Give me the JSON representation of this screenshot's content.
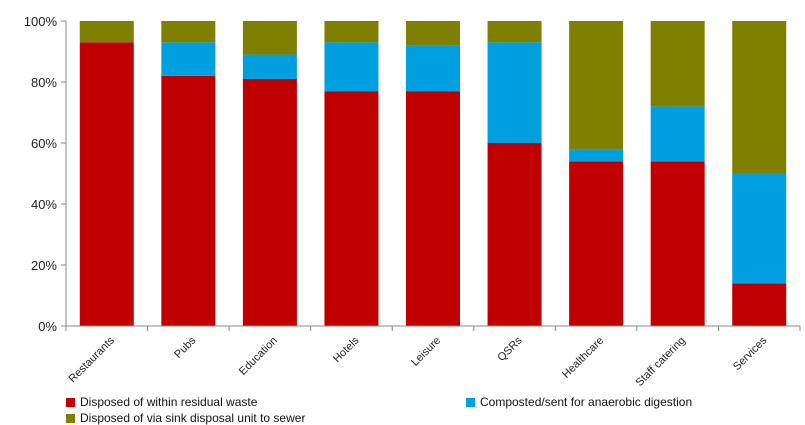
{
  "chart_data": {
    "type": "bar",
    "stacked": true,
    "percent": true,
    "title": "",
    "xlabel": "",
    "ylabel": "",
    "ylim": [
      0,
      100
    ],
    "yticks": [
      "0%",
      "20%",
      "40%",
      "60%",
      "80%",
      "100%"
    ],
    "grid": false,
    "legend_position": "bottom",
    "categories": [
      "Restaurants",
      "Pubs",
      "Education",
      "Hotels",
      "Leisure",
      "QSRs",
      "Healthcare",
      "Staff catering",
      "Services"
    ],
    "series": [
      {
        "name": "Disposed of within residual waste",
        "color": "#c00000",
        "values": [
          93,
          82,
          81,
          77,
          77,
          60,
          54,
          54,
          14
        ]
      },
      {
        "name": "Composted/sent for anaerobic digestion",
        "color": "#00a0e0",
        "values": [
          0,
          11,
          8,
          16,
          15,
          33,
          4,
          18,
          36
        ]
      },
      {
        "name": "Disposed of via sink disposal unit to sewer",
        "color": "#808000",
        "values": [
          7,
          7,
          11,
          7,
          8,
          7,
          42,
          28,
          50
        ]
      }
    ]
  }
}
